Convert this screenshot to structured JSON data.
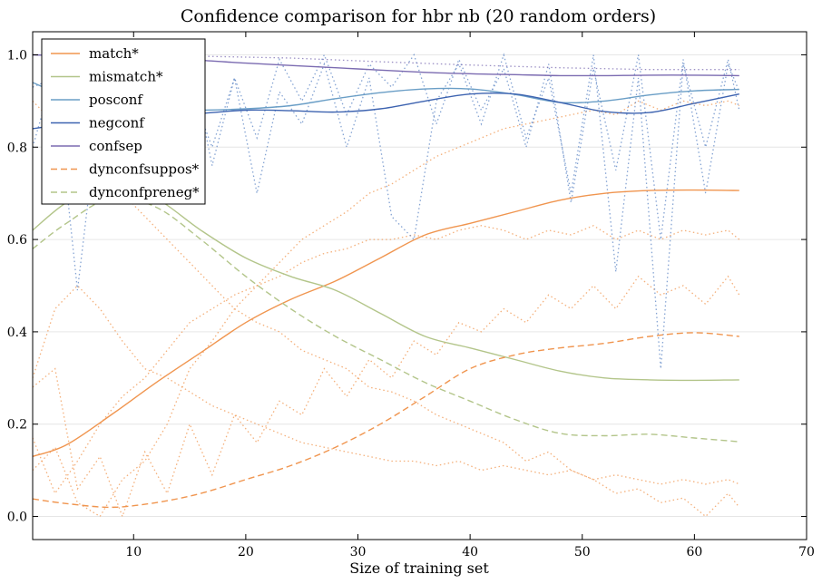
{
  "chart_data": {
    "type": "line",
    "title": "Confidence comparison for hbr nb (20 random orders)",
    "xlabel": "Size of training set",
    "ylabel": "",
    "xlim": [
      1,
      70
    ],
    "ylim": [
      -0.05,
      1.05
    ],
    "xticks": [
      10,
      20,
      30,
      40,
      50,
      60,
      70
    ],
    "yticks": [
      0.0,
      0.2,
      0.4,
      0.6,
      0.8,
      1.0
    ],
    "ytick_labels": [
      "0.0",
      "0.2",
      "0.4",
      "0.6",
      "0.8",
      "1.0"
    ],
    "grid": "horizontal",
    "legend_position": "top-left",
    "series": [
      {
        "name": "match*",
        "color": "#f0954f",
        "dash": "solid",
        "x": [
          1,
          4,
          8,
          12,
          16,
          20,
          24,
          28,
          32,
          36,
          40,
          44,
          48,
          52,
          56,
          60,
          64
        ],
        "y": [
          0.13,
          0.155,
          0.22,
          0.29,
          0.355,
          0.42,
          0.47,
          0.51,
          0.56,
          0.61,
          0.635,
          0.66,
          0.685,
          0.7,
          0.706,
          0.707,
          0.706
        ]
      },
      {
        "name": "mismatch*",
        "color": "#b3c58a",
        "dash": "solid",
        "x": [
          1,
          4,
          8,
          12,
          16,
          20,
          24,
          28,
          32,
          36,
          40,
          44,
          48,
          52,
          56,
          60,
          64
        ],
        "y": [
          0.62,
          0.68,
          0.73,
          0.69,
          0.62,
          0.56,
          0.52,
          0.49,
          0.44,
          0.39,
          0.365,
          0.34,
          0.315,
          0.3,
          0.296,
          0.295,
          0.296
        ]
      },
      {
        "name": "posconf",
        "color": "#6a9ec6",
        "dash": "solid",
        "x": [
          1,
          4,
          8,
          12,
          16,
          20,
          24,
          28,
          32,
          36,
          40,
          44,
          48,
          52,
          56,
          60,
          64
        ],
        "y": [
          0.94,
          0.91,
          0.885,
          0.88,
          0.88,
          0.883,
          0.89,
          0.905,
          0.918,
          0.926,
          0.926,
          0.914,
          0.897,
          0.9,
          0.913,
          0.922,
          0.925
        ]
      },
      {
        "name": "negconf",
        "color": "#3d63b0",
        "dash": "solid",
        "x": [
          1,
          4,
          8,
          12,
          16,
          20,
          24,
          28,
          32,
          36,
          40,
          44,
          48,
          52,
          56,
          60,
          64
        ],
        "y": [
          0.84,
          0.85,
          0.86,
          0.866,
          0.873,
          0.88,
          0.879,
          0.876,
          0.883,
          0.9,
          0.915,
          0.915,
          0.897,
          0.877,
          0.875,
          0.895,
          0.915
        ]
      },
      {
        "name": "confsep",
        "color": "#7b6bb1",
        "dash": "solid",
        "x": [
          1,
          4,
          8,
          12,
          16,
          20,
          24,
          28,
          32,
          36,
          40,
          44,
          48,
          52,
          56,
          60,
          64
        ],
        "y": [
          1.0,
          0.998,
          0.995,
          0.992,
          0.988,
          0.982,
          0.977,
          0.972,
          0.967,
          0.962,
          0.959,
          0.957,
          0.955,
          0.955,
          0.956,
          0.956,
          0.955
        ]
      },
      {
        "name": "dynconfsuppos*",
        "color": "#f0954f",
        "dash": "dashed",
        "x": [
          1,
          4,
          8,
          12,
          16,
          20,
          24,
          28,
          32,
          36,
          40,
          44,
          48,
          52,
          56,
          60,
          64
        ],
        "y": [
          0.038,
          0.028,
          0.02,
          0.03,
          0.05,
          0.08,
          0.11,
          0.15,
          0.2,
          0.26,
          0.32,
          0.35,
          0.365,
          0.375,
          0.39,
          0.398,
          0.39
        ]
      },
      {
        "name": "dynconfpreneg*",
        "color": "#b3c58a",
        "dash": "dashed",
        "x": [
          1,
          4,
          8,
          12,
          16,
          20,
          24,
          28,
          32,
          36,
          40,
          44,
          48,
          52,
          56,
          60,
          64
        ],
        "y": [
          0.58,
          0.635,
          0.69,
          0.67,
          0.6,
          0.52,
          0.45,
          0.39,
          0.34,
          0.29,
          0.25,
          0.21,
          0.18,
          0.175,
          0.178,
          0.17,
          0.162
        ]
      }
    ],
    "background_series": [
      {
        "color": "#f0954f",
        "x": [
          1,
          3,
          5,
          7,
          9,
          11,
          13,
          15,
          17,
          19,
          21,
          23,
          25,
          27,
          29,
          31,
          33,
          35,
          37,
          39,
          41,
          43,
          45,
          47,
          49,
          51,
          53,
          55,
          57,
          59,
          61,
          63,
          64
        ],
        "y": [
          0.3,
          0.45,
          0.5,
          0.45,
          0.38,
          0.32,
          0.3,
          0.27,
          0.24,
          0.22,
          0.2,
          0.18,
          0.16,
          0.15,
          0.14,
          0.13,
          0.12,
          0.12,
          0.11,
          0.12,
          0.1,
          0.11,
          0.1,
          0.09,
          0.1,
          0.08,
          0.09,
          0.08,
          0.07,
          0.08,
          0.07,
          0.08,
          0.07
        ]
      },
      {
        "color": "#f0954f",
        "x": [
          1,
          3,
          5,
          7,
          9,
          11,
          13,
          15,
          17,
          19,
          21,
          23,
          25,
          27,
          29,
          31,
          33,
          35,
          37,
          39,
          41,
          43,
          45,
          47,
          49,
          51,
          53,
          55,
          57,
          59,
          61,
          63,
          64
        ],
        "y": [
          0.17,
          0.05,
          0.12,
          0.2,
          0.26,
          0.3,
          0.36,
          0.42,
          0.45,
          0.48,
          0.5,
          0.52,
          0.55,
          0.57,
          0.58,
          0.6,
          0.6,
          0.61,
          0.6,
          0.62,
          0.63,
          0.62,
          0.6,
          0.62,
          0.61,
          0.63,
          0.6,
          0.62,
          0.6,
          0.62,
          0.61,
          0.62,
          0.6
        ]
      },
      {
        "color": "#f0954f",
        "x": [
          1,
          3,
          5,
          7,
          9,
          11,
          13,
          15,
          17,
          19,
          21,
          23,
          25,
          27,
          29,
          31,
          33,
          35,
          37,
          39,
          41,
          43,
          45,
          47,
          49,
          51,
          53,
          55,
          57,
          59,
          61,
          63,
          64
        ],
        "y": [
          0.28,
          0.32,
          0.06,
          0.13,
          0.0,
          0.14,
          0.05,
          0.2,
          0.09,
          0.22,
          0.16,
          0.25,
          0.22,
          0.32,
          0.26,
          0.34,
          0.3,
          0.38,
          0.35,
          0.42,
          0.4,
          0.45,
          0.42,
          0.48,
          0.45,
          0.5,
          0.45,
          0.52,
          0.48,
          0.5,
          0.46,
          0.52,
          0.48
        ]
      },
      {
        "color": "#f0954f",
        "x": [
          1,
          3,
          5,
          7,
          9,
          11,
          13,
          15,
          17,
          19,
          21,
          23,
          25,
          27,
          29,
          31,
          33,
          35,
          37,
          39,
          41,
          43,
          45,
          47,
          49,
          51,
          53,
          55,
          57,
          59,
          61,
          63,
          64
        ],
        "y": [
          0.1,
          0.15,
          0.03,
          0.0,
          0.08,
          0.12,
          0.2,
          0.32,
          0.38,
          0.45,
          0.5,
          0.55,
          0.6,
          0.63,
          0.66,
          0.7,
          0.72,
          0.75,
          0.78,
          0.8,
          0.82,
          0.84,
          0.85,
          0.86,
          0.87,
          0.88,
          0.87,
          0.9,
          0.88,
          0.9,
          0.89,
          0.9,
          0.89
        ]
      },
      {
        "color": "#f0954f",
        "x": [
          1,
          3,
          5,
          7,
          9,
          11,
          13,
          15,
          17,
          19,
          21,
          23,
          25,
          27,
          29,
          31,
          33,
          35,
          37,
          39,
          41,
          43,
          45,
          47,
          49,
          51,
          53,
          55,
          57,
          59,
          61,
          63,
          64
        ],
        "y": [
          0.9,
          0.85,
          0.8,
          0.75,
          0.7,
          0.65,
          0.6,
          0.55,
          0.5,
          0.45,
          0.42,
          0.4,
          0.36,
          0.34,
          0.32,
          0.28,
          0.27,
          0.25,
          0.22,
          0.2,
          0.18,
          0.16,
          0.12,
          0.14,
          0.1,
          0.08,
          0.05,
          0.06,
          0.03,
          0.04,
          0.0,
          0.05,
          0.02
        ]
      },
      {
        "color": "#5b84c4",
        "x": [
          1,
          3,
          5,
          7,
          9,
          11,
          13,
          15,
          17,
          19,
          21,
          23,
          25,
          27,
          29,
          31,
          33,
          35,
          37,
          39,
          41,
          43,
          45,
          47,
          49,
          51,
          53,
          55,
          57,
          59,
          61,
          63,
          64
        ],
        "y": [
          0.93,
          0.95,
          0.49,
          0.9,
          0.7,
          0.98,
          0.75,
          0.93,
          0.8,
          0.95,
          0.7,
          0.92,
          0.85,
          0.98,
          0.8,
          0.95,
          0.65,
          0.6,
          0.9,
          0.98,
          0.85,
          1.0,
          0.82,
          0.95,
          0.7,
          1.0,
          0.53,
          0.95,
          0.32,
          0.98,
          0.8,
          0.99,
          0.88
        ]
      },
      {
        "color": "#5b84c4",
        "x": [
          1,
          3,
          5,
          7,
          9,
          11,
          13,
          15,
          17,
          19,
          21,
          23,
          25,
          27,
          29,
          31,
          33,
          35,
          37,
          39,
          41,
          43,
          45,
          47,
          49,
          51,
          53,
          55,
          57,
          59,
          61,
          63,
          64
        ],
        "y": [
          0.8,
          0.97,
          0.88,
          0.99,
          0.8,
          0.97,
          0.9,
          1.0,
          0.76,
          0.95,
          0.82,
          0.99,
          0.9,
          1.0,
          0.87,
          0.98,
          0.93,
          1.0,
          0.85,
          0.99,
          0.88,
          0.97,
          0.8,
          0.98,
          0.68,
          0.97,
          0.75,
          1.0,
          0.6,
          0.99,
          0.7,
          0.98,
          0.92
        ]
      },
      {
        "color": "#7b6bb1",
        "x": [
          1,
          8,
          16,
          24,
          32,
          40,
          48,
          56,
          64
        ],
        "y": [
          1.0,
          0.999,
          0.997,
          0.993,
          0.985,
          0.978,
          0.972,
          0.968,
          0.968
        ]
      }
    ]
  }
}
